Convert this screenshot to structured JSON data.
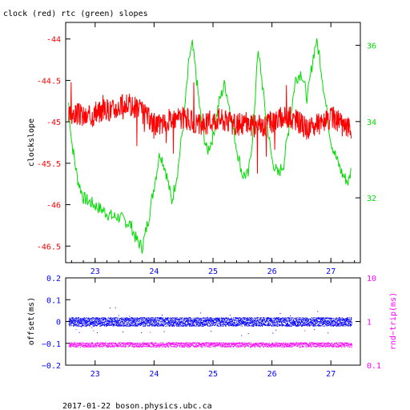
{
  "title": "clock (red) rtc (green) slopes",
  "footer": "2017-01-22  boson.physics.ubc.ca",
  "colors": {
    "clock": "#ff0000",
    "rtc": "#00dd00",
    "offset": "#0000ff",
    "rndtrip": "#ff00ff",
    "axis": "#000000"
  },
  "chart_data": [
    {
      "type": "line",
      "title": "clock (red) rtc (green) slopes",
      "xlabel": "",
      "ylabel": "clockslope",
      "y2label": "",
      "xlim": [
        22.5,
        27.5
      ],
      "ylim": [
        -46.7,
        -43.8
      ],
      "y2lim": [
        30.3,
        36.6
      ],
      "xticks": [
        "23",
        "24",
        "25",
        "26",
        "27"
      ],
      "yticks": [
        "-44",
        "-44.5",
        "-45",
        "-45.5",
        "-46",
        "-46.5"
      ],
      "y2ticks": [
        "32",
        "34",
        "36"
      ],
      "grid": false,
      "series": [
        {
          "name": "clock",
          "axis": "left",
          "x": [
            22.55,
            22.7,
            22.85,
            23.0,
            23.15,
            23.3,
            23.45,
            23.6,
            23.75,
            23.9,
            24.05,
            24.2,
            24.35,
            24.5,
            24.65,
            24.8,
            24.95,
            25.1,
            25.25,
            25.4,
            25.55,
            25.7,
            25.85,
            26.0,
            26.15,
            26.3,
            26.45,
            26.6,
            26.75,
            26.9,
            27.05,
            27.2,
            27.35
          ],
          "values": [
            -44.95,
            -44.9,
            -44.95,
            -44.9,
            -44.85,
            -44.85,
            -44.8,
            -44.8,
            -44.85,
            -44.95,
            -45.05,
            -45.0,
            -44.95,
            -44.95,
            -45.0,
            -45.05,
            -45.0,
            -44.95,
            -45.0,
            -45.05,
            -45.0,
            -45.05,
            -45.05,
            -45.0,
            -44.95,
            -44.95,
            -45.0,
            -45.1,
            -45.05,
            -45.0,
            -44.95,
            -45.05,
            -45.1
          ]
        },
        {
          "name": "rtc",
          "axis": "right",
          "x": [
            22.55,
            22.6,
            22.7,
            22.8,
            22.9,
            23.0,
            23.1,
            23.2,
            23.3,
            23.4,
            23.5,
            23.6,
            23.7,
            23.8,
            23.9,
            24.0,
            24.1,
            24.2,
            24.3,
            24.4,
            24.5,
            24.6,
            24.65,
            24.7,
            24.8,
            24.9,
            25.0,
            25.1,
            25.2,
            25.3,
            25.4,
            25.5,
            25.6,
            25.7,
            25.75,
            25.8,
            25.9,
            26.0,
            26.1,
            26.2,
            26.3,
            26.4,
            26.5,
            26.6,
            26.7,
            26.75,
            26.8,
            26.9,
            27.0,
            27.1,
            27.2,
            27.3,
            27.35
          ],
          "values": [
            34.5,
            33.5,
            32.5,
            32.0,
            31.9,
            31.8,
            31.7,
            31.6,
            31.5,
            31.5,
            31.4,
            31.3,
            30.9,
            30.7,
            31.4,
            32.3,
            33.2,
            32.7,
            31.9,
            32.7,
            34.0,
            35.7,
            36.0,
            35.4,
            34.0,
            33.2,
            33.6,
            34.5,
            35.0,
            34.2,
            33.3,
            32.6,
            32.6,
            34.0,
            35.8,
            35.5,
            34.1,
            33.0,
            32.6,
            32.9,
            34.0,
            35.1,
            35.3,
            34.6,
            35.7,
            36.1,
            35.8,
            34.6,
            33.5,
            33.0,
            32.6,
            32.4,
            32.8
          ]
        }
      ]
    },
    {
      "type": "scatter",
      "xlabel": "",
      "ylabel": "offset(ms)",
      "y2label": "rnd−trip(ms)",
      "xlim": [
        22.5,
        27.5
      ],
      "ylim": [
        -0.2,
        0.2
      ],
      "y2lim": [
        0.1,
        10
      ],
      "y2scale": "log",
      "xticks": [
        "23",
        "24",
        "25",
        "26",
        "27"
      ],
      "yticks": [
        "0.2",
        "0.1",
        "0",
        "−0.1",
        "−0.2"
      ],
      "y2ticks": [
        "10",
        "1",
        "0.1"
      ],
      "grid": false,
      "series": [
        {
          "name": "offset",
          "axis": "left",
          "x": [
            22.55,
            23.0,
            23.5,
            24.0,
            24.5,
            25.0,
            25.5,
            26.0,
            26.5,
            27.0,
            27.35
          ],
          "values": [
            0.0,
            0.0,
            0.0,
            0.0,
            0.0,
            0.0,
            0.0,
            0.0,
            0.0,
            0.0,
            0.0
          ],
          "spread": 0.02
        },
        {
          "name": "rndtrip",
          "axis": "right",
          "x": [
            22.55,
            23.0,
            23.5,
            24.0,
            24.5,
            25.0,
            25.5,
            26.0,
            26.5,
            27.0,
            27.35
          ],
          "values": [
            0.3,
            0.3,
            0.3,
            0.3,
            0.3,
            0.3,
            0.3,
            0.3,
            0.3,
            0.3,
            0.3
          ],
          "spread": 0.03
        }
      ]
    }
  ]
}
